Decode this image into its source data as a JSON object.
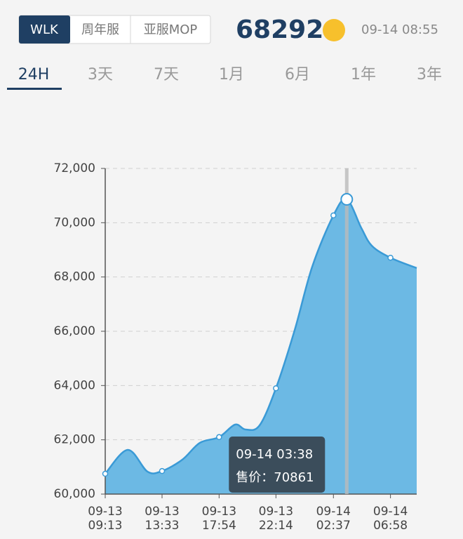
{
  "header": {
    "tabs": [
      "WLK",
      "周年服",
      "亚服MOP"
    ],
    "price": "68292",
    "time": "09-14 08:55"
  },
  "periods": [
    "24H",
    "3天",
    "7天",
    "1月",
    "6月",
    "1年",
    "3年"
  ],
  "chart_data": {
    "type": "area",
    "x": [
      "09-13 09:13",
      "09-13 10:56",
      "09-13 12:26",
      "09-13 13:33",
      "09-13 15:06",
      "09-13 16:26",
      "09-13 17:54",
      "09-13 19:07",
      "09-13 19:55",
      "09-13 20:59",
      "09-13 22:14",
      "09-13 23:40",
      "09-14 01:00",
      "09-14 02:37",
      "09-14 03:38",
      "09-14 04:45",
      "09-14 05:33",
      "09-14 06:58",
      "09-14 08:58"
    ],
    "series": [
      {
        "color": "#3a9ad6",
        "values": [
          60750,
          61630,
          60830,
          60850,
          61270,
          61890,
          62100,
          62560,
          62380,
          62530,
          63900,
          66050,
          68380,
          70270,
          70861,
          69800,
          69150,
          68710,
          68330
        ]
      }
    ],
    "xlim": [
      "09-13 09:13",
      "09-14 08:58"
    ],
    "xticks": [
      {
        "date": "09-13",
        "time": "09:13"
      },
      {
        "date": "09-13",
        "time": "13:33"
      },
      {
        "date": "09-13",
        "time": "17:54"
      },
      {
        "date": "09-13",
        "time": "22:14"
      },
      {
        "date": "09-14",
        "time": "02:37"
      },
      {
        "date": "09-14",
        "time": "06:58"
      }
    ],
    "ylim": [
      60000,
      72000
    ],
    "yticks": [
      {
        "value": 60000,
        "label": "60,000"
      },
      {
        "value": 62000,
        "label": "62,000"
      },
      {
        "value": 64000,
        "label": "64,000"
      },
      {
        "value": 66000,
        "label": "66,000"
      },
      {
        "value": 68000,
        "label": "68,000"
      },
      {
        "value": 70000,
        "label": "70,000"
      },
      {
        "value": 72000,
        "label": "72,000"
      }
    ],
    "grid": true,
    "tooltip": {
      "time": "09-14 03:38",
      "label": "售价：",
      "value": 70861
    }
  }
}
